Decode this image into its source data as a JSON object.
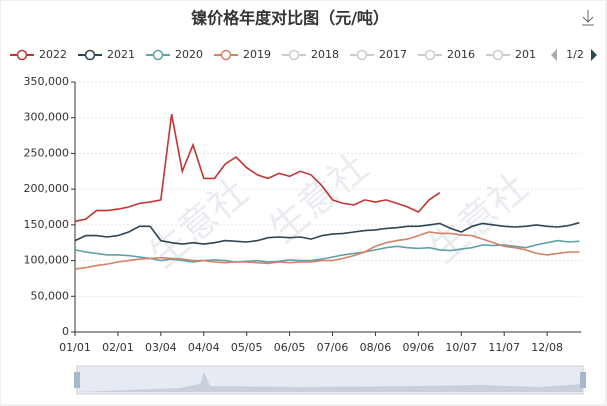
{
  "chart_data": {
    "type": "line",
    "title": "镍价格年度对比图（元/吨）",
    "categories": [
      "01/01",
      null,
      null,
      null,
      "02/01",
      null,
      null,
      null,
      "03/04",
      null,
      null,
      null,
      "04/04",
      null,
      null,
      null,
      "05/05",
      null,
      null,
      null,
      "06/05",
      null,
      null,
      null,
      "07/06",
      null,
      null,
      null,
      "08/06",
      null,
      null,
      null,
      "09/06",
      null,
      null,
      null,
      "10/07",
      null,
      null,
      null,
      "11/07",
      null,
      null,
      null,
      "12/08",
      null,
      null,
      null
    ],
    "series": [
      {
        "name": "2022",
        "color": "#c23531",
        "values": [
          155000,
          158000,
          170000,
          170000,
          172000,
          175000,
          180000,
          182000,
          185000,
          305000,
          225000,
          262000,
          215000,
          215000,
          235000,
          245000,
          230000,
          220000,
          215000,
          222000,
          218000,
          225000,
          220000,
          205000,
          185000,
          180000,
          178000,
          185000,
          182000,
          185000,
          180000,
          175000,
          168000,
          185000,
          195000,
          null,
          null,
          null,
          null,
          null,
          null,
          null,
          null,
          null,
          null,
          null,
          null,
          null
        ]
      },
      {
        "name": "2021",
        "color": "#2f4554",
        "values": [
          128000,
          135000,
          135000,
          133000,
          135000,
          140000,
          148000,
          148000,
          128000,
          125000,
          123000,
          125000,
          123000,
          125000,
          128000,
          127000,
          126000,
          128000,
          132000,
          133000,
          132000,
          133000,
          130000,
          135000,
          137000,
          138000,
          140000,
          142000,
          143000,
          145000,
          146000,
          148000,
          148000,
          150000,
          152000,
          145000,
          140000,
          148000,
          152000,
          150000,
          148000,
          147000,
          148000,
          150000,
          148000,
          147000,
          149000,
          153000
        ]
      },
      {
        "name": "2020",
        "color": "#61a0a8",
        "values": [
          115000,
          112000,
          110000,
          108000,
          108000,
          107000,
          105000,
          103000,
          100000,
          102000,
          100000,
          98000,
          100000,
          101000,
          100000,
          98000,
          99000,
          100000,
          98000,
          99000,
          101000,
          100000,
          100000,
          102000,
          105000,
          108000,
          110000,
          112000,
          115000,
          118000,
          120000,
          118000,
          117000,
          118000,
          115000,
          114000,
          116000,
          118000,
          122000,
          121000,
          122000,
          120000,
          118000,
          122000,
          125000,
          128000,
          126000,
          127000
        ]
      },
      {
        "name": "2019",
        "color": "#d48265",
        "values": [
          88000,
          90000,
          93000,
          95000,
          98000,
          100000,
          102000,
          103000,
          104000,
          103000,
          102000,
          100000,
          100000,
          98000,
          97000,
          98000,
          98000,
          97000,
          96000,
          98000,
          97000,
          98000,
          98000,
          100000,
          100000,
          103000,
          107000,
          112000,
          120000,
          125000,
          128000,
          130000,
          135000,
          140000,
          138000,
          138000,
          136000,
          135000,
          130000,
          125000,
          120000,
          118000,
          115000,
          110000,
          108000,
          110000,
          112000,
          112000
        ]
      }
    ],
    "hidden_series": [
      "2018",
      "2017",
      "2016",
      "201"
    ],
    "legend_page": "1/2",
    "watermark": "生意社",
    "ylim": [
      0,
      350000
    ],
    "yticks": [
      0,
      {
        "value": 50000,
        "label": "50,000"
      },
      {
        "value": 100000,
        "label": "100,000"
      },
      {
        "value": 150000,
        "label": "150,000"
      },
      {
        "value": 200000,
        "label": "200,000"
      },
      {
        "value": 250000,
        "label": "250,000"
      },
      {
        "value": 300000,
        "label": "300,000"
      },
      {
        "value": 350000,
        "label": "350,000"
      }
    ],
    "grid": true
  }
}
